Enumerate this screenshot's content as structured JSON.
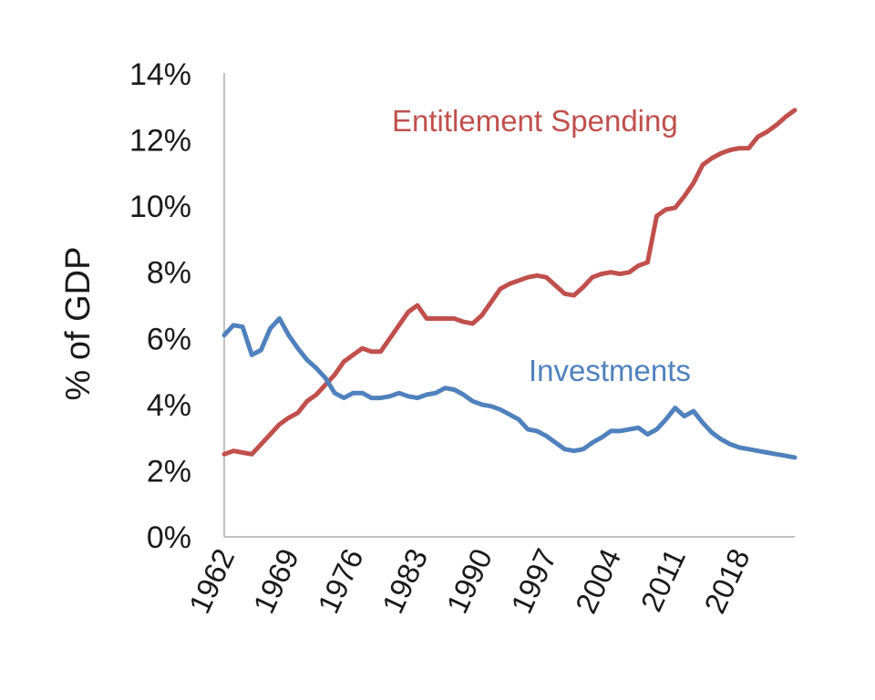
{
  "chart_data": {
    "type": "line",
    "title": "",
    "xlabel": "",
    "ylabel": "% of GDP",
    "xlim": [
      1962,
      2024
    ],
    "ylim": [
      0,
      14
    ],
    "y_ticks": [
      "0%",
      "2%",
      "4%",
      "6%",
      "8%",
      "10%",
      "12%",
      "14%"
    ],
    "x_ticks": [
      "1962",
      "1969",
      "1976",
      "1983",
      "1990",
      "1997",
      "2004",
      "2011",
      "2018"
    ],
    "grid": false,
    "legend": "none",
    "series": [
      {
        "name": "Entitlement Spending",
        "color": "#c0504d",
        "x": [
          1962,
          1963,
          1964,
          1965,
          1966,
          1967,
          1968,
          1969,
          1970,
          1971,
          1972,
          1973,
          1974,
          1975,
          1976,
          1977,
          1978,
          1979,
          1980,
          1981,
          1982,
          1983,
          1984,
          1985,
          1986,
          1987,
          1988,
          1989,
          1990,
          1991,
          1992,
          1993,
          1994,
          1995,
          1996,
          1997,
          1998,
          1999,
          2000,
          2001,
          2002,
          2003,
          2004,
          2005,
          2006,
          2007,
          2008,
          2009,
          2010,
          2011,
          2012,
          2013,
          2014,
          2015,
          2016,
          2017,
          2018,
          2019,
          2020,
          2021,
          2022,
          2023,
          2024
        ],
        "values": [
          2.5,
          2.6,
          2.55,
          2.5,
          2.8,
          3.1,
          3.4,
          3.6,
          3.75,
          4.1,
          4.3,
          4.6,
          4.9,
          5.3,
          5.5,
          5.7,
          5.6,
          5.6,
          6.0,
          6.4,
          6.8,
          7.0,
          6.6,
          6.6,
          6.6,
          6.6,
          6.5,
          6.45,
          6.7,
          7.1,
          7.5,
          7.65,
          7.75,
          7.85,
          7.9,
          7.85,
          7.6,
          7.35,
          7.3,
          7.55,
          7.85,
          7.95,
          8.0,
          7.95,
          8.0,
          8.2,
          8.3,
          9.7,
          9.9,
          9.95,
          10.3,
          10.7,
          11.25,
          11.45,
          11.6,
          11.7,
          11.75,
          11.75,
          12.1,
          12.25,
          12.45,
          12.7,
          12.9
        ],
        "label": "Entitlement Spending"
      },
      {
        "name": "Investments",
        "color": "#4f81bd",
        "x": [
          1962,
          1963,
          1964,
          1965,
          1966,
          1967,
          1968,
          1969,
          1970,
          1971,
          1972,
          1973,
          1974,
          1975,
          1976,
          1977,
          1978,
          1979,
          1980,
          1981,
          1982,
          1983,
          1984,
          1985,
          1986,
          1987,
          1988,
          1989,
          1990,
          1991,
          1992,
          1993,
          1994,
          1995,
          1996,
          1997,
          1998,
          1999,
          2000,
          2001,
          2002,
          2003,
          2004,
          2005,
          2006,
          2007,
          2008,
          2009,
          2010,
          2011,
          2012,
          2013,
          2014,
          2015,
          2016,
          2017,
          2018,
          2019,
          2020,
          2021,
          2022,
          2023,
          2024
        ],
        "values": [
          6.1,
          6.4,
          6.35,
          5.5,
          5.65,
          6.3,
          6.6,
          6.1,
          5.7,
          5.35,
          5.1,
          4.8,
          4.35,
          4.2,
          4.35,
          4.35,
          4.2,
          4.2,
          4.25,
          4.35,
          4.25,
          4.2,
          4.3,
          4.35,
          4.5,
          4.45,
          4.3,
          4.1,
          4.0,
          3.95,
          3.85,
          3.7,
          3.55,
          3.25,
          3.2,
          3.05,
          2.85,
          2.65,
          2.6,
          2.65,
          2.85,
          3.0,
          3.2,
          3.2,
          3.25,
          3.3,
          3.1,
          3.25,
          3.55,
          3.9,
          3.65,
          3.8,
          3.45,
          3.15,
          2.95,
          2.8,
          2.7,
          2.65,
          2.6,
          2.55,
          2.5,
          2.45,
          2.4
        ],
        "label": "Investments"
      }
    ]
  }
}
